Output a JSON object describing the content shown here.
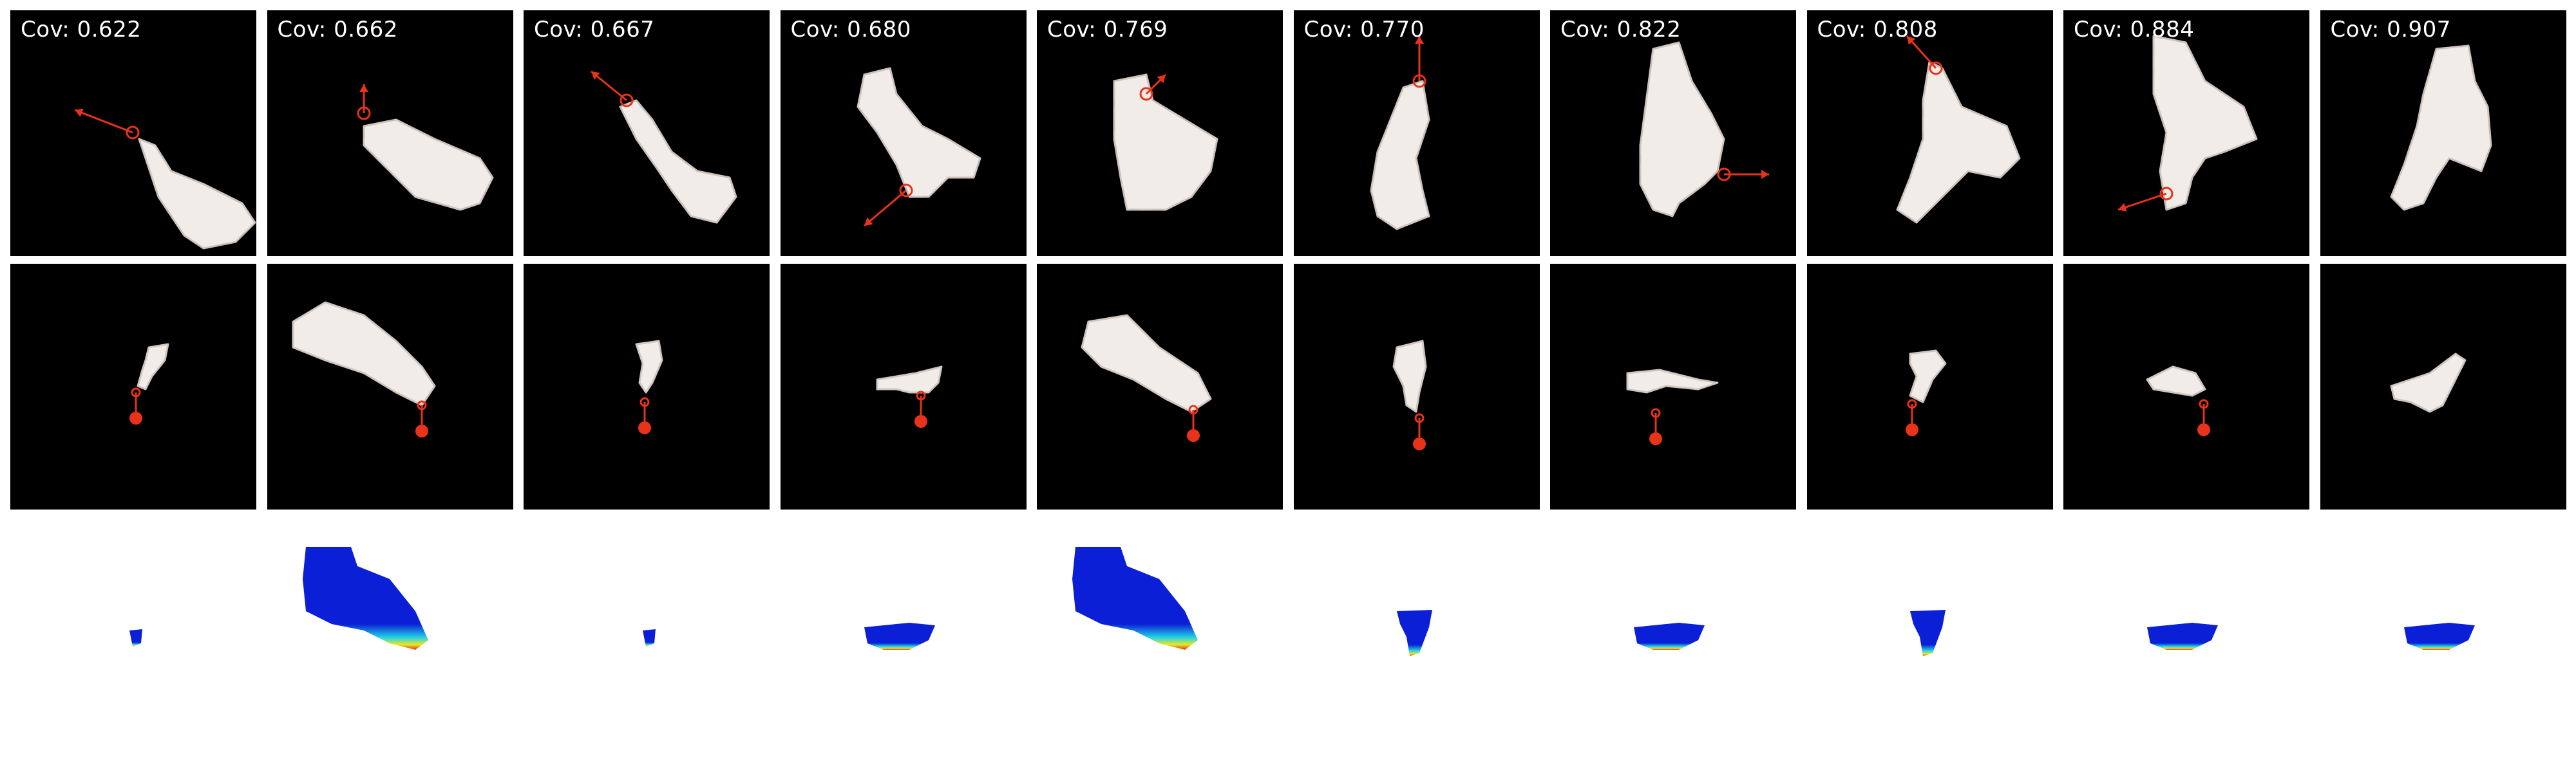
{
  "figure": {
    "columns": [
      {
        "coverage": "Cov: 0.622",
        "action_arrow": "up-left",
        "row2_scale": "small",
        "row3_size": "tiny"
      },
      {
        "coverage": "Cov: 0.662",
        "action_arrow": "up",
        "row2_scale": "large",
        "row3_size": "large"
      },
      {
        "coverage": "Cov: 0.667",
        "action_arrow": "up-left",
        "row2_scale": "small",
        "row3_size": "tiny"
      },
      {
        "coverage": "Cov: 0.680",
        "action_arrow": "down-left",
        "row2_scale": "small",
        "row3_size": "medium"
      },
      {
        "coverage": "Cov: 0.769",
        "action_arrow": "up-right",
        "row2_scale": "large",
        "row3_size": "large"
      },
      {
        "coverage": "Cov: 0.770",
        "action_arrow": "up",
        "row2_scale": "small",
        "row3_size": "small"
      },
      {
        "coverage": "Cov: 0.822",
        "action_arrow": "right",
        "row2_scale": "small",
        "row3_size": "medium"
      },
      {
        "coverage": "Cov: 0.808",
        "action_arrow": "up-left",
        "row2_scale": "small",
        "row3_size": "small"
      },
      {
        "coverage": "Cov: 0.884",
        "action_arrow": "down-left",
        "row2_scale": "small",
        "row3_size": "medium"
      },
      {
        "coverage": "Cov: 0.907",
        "action_arrow": "none",
        "row2_scale": "small",
        "row3_size": "medium"
      }
    ],
    "colors": {
      "background": "#000000",
      "cloth": "#f2ece8",
      "cloth_shadow": "#cfc6c1",
      "marker": "#e8321a",
      "heat_low": "#0a1fd6",
      "heat_high": "#e8321a"
    }
  }
}
